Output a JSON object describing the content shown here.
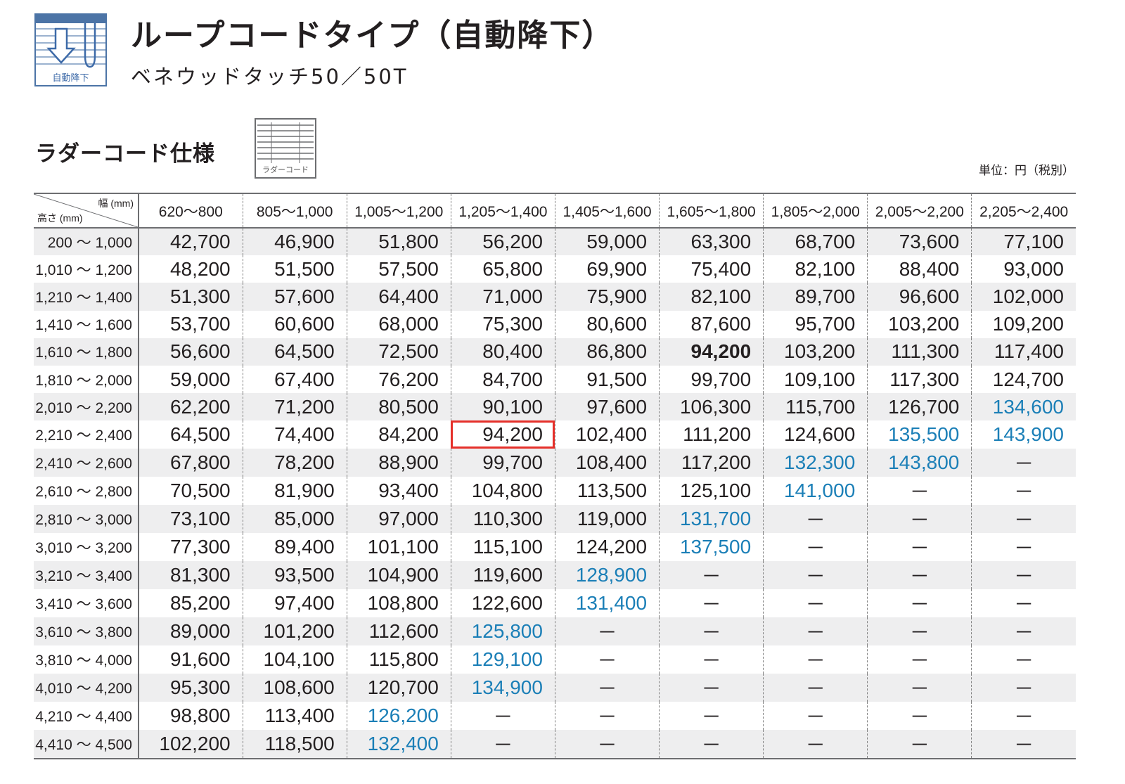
{
  "header": {
    "icon_caption": "自動降下",
    "title": "ループコードタイプ（自動降下）",
    "subtitle": "ベネウッドタッチ50／50T"
  },
  "section": {
    "title": "ラダーコード仕様",
    "icon_caption": "ラダーコード",
    "unit": "単位：円（税別）"
  },
  "table": {
    "corner_width_label": "幅 (mm)",
    "corner_height_label": "高さ (mm)",
    "columns": [
      "620～800",
      "805～1,000",
      "1,005～1,200",
      "1,205～1,400",
      "1,405～1,600",
      "1,605～1,800",
      "1,805～2,000",
      "2,005～2,200",
      "2,205～2,400"
    ],
    "rows": [
      {
        "label": "200 ～ 1,000",
        "values": [
          "42,700",
          "46,900",
          "51,800",
          "56,200",
          "59,000",
          "63,300",
          "68,700",
          "73,600",
          "77,100"
        ]
      },
      {
        "label": "1,010 ～ 1,200",
        "values": [
          "48,200",
          "51,500",
          "57,500",
          "65,800",
          "69,900",
          "75,400",
          "82,100",
          "88,400",
          "93,000"
        ]
      },
      {
        "label": "1,210 ～ 1,400",
        "values": [
          "51,300",
          "57,600",
          "64,400",
          "71,000",
          "75,900",
          "82,100",
          "89,700",
          "96,600",
          "102,000"
        ]
      },
      {
        "label": "1,410 ～ 1,600",
        "values": [
          "53,700",
          "60,600",
          "68,000",
          "75,300",
          "80,600",
          "87,600",
          "95,700",
          "103,200",
          "109,200"
        ]
      },
      {
        "label": "1,610 ～ 1,800",
        "values": [
          "56,600",
          "64,500",
          "72,500",
          "80,400",
          "86,800",
          "94,200",
          "103,200",
          "111,300",
          "117,400"
        ]
      },
      {
        "label": "1,810 ～ 2,000",
        "values": [
          "59,000",
          "67,400",
          "76,200",
          "84,700",
          "91,500",
          "99,700",
          "109,100",
          "117,300",
          "124,700"
        ]
      },
      {
        "label": "2,010 ～ 2,200",
        "values": [
          "62,200",
          "71,200",
          "80,500",
          "90,100",
          "97,600",
          "106,300",
          "115,700",
          "126,700",
          "134,600"
        ]
      },
      {
        "label": "2,210 ～ 2,400",
        "values": [
          "64,500",
          "74,400",
          "84,200",
          "94,200",
          "102,400",
          "111,200",
          "124,600",
          "135,500",
          "143,900"
        ]
      },
      {
        "label": "2,410 ～ 2,600",
        "values": [
          "67,800",
          "78,200",
          "88,900",
          "99,700",
          "108,400",
          "117,200",
          "132,300",
          "143,800",
          "－"
        ]
      },
      {
        "label": "2,610 ～ 2,800",
        "values": [
          "70,500",
          "81,900",
          "93,400",
          "104,800",
          "113,500",
          "125,100",
          "141,000",
          "－",
          "－"
        ]
      },
      {
        "label": "2,810 ～ 3,000",
        "values": [
          "73,100",
          "85,000",
          "97,000",
          "110,300",
          "119,000",
          "131,700",
          "－",
          "－",
          "－"
        ]
      },
      {
        "label": "3,010 ～ 3,200",
        "values": [
          "77,300",
          "89,400",
          "101,100",
          "115,100",
          "124,200",
          "137,500",
          "－",
          "－",
          "－"
        ]
      },
      {
        "label": "3,210 ～ 3,400",
        "values": [
          "81,300",
          "93,500",
          "104,900",
          "119,600",
          "128,900",
          "－",
          "－",
          "－",
          "－"
        ]
      },
      {
        "label": "3,410 ～ 3,600",
        "values": [
          "85,200",
          "97,400",
          "108,800",
          "122,600",
          "131,400",
          "－",
          "－",
          "－",
          "－"
        ]
      },
      {
        "label": "3,610 ～ 3,800",
        "values": [
          "89,000",
          "101,200",
          "112,600",
          "125,800",
          "－",
          "－",
          "－",
          "－",
          "－"
        ]
      },
      {
        "label": "3,810 ～ 4,000",
        "values": [
          "91,600",
          "104,100",
          "115,800",
          "129,100",
          "－",
          "－",
          "－",
          "－",
          "－"
        ]
      },
      {
        "label": "4,010 ～ 4,200",
        "values": [
          "95,300",
          "108,600",
          "120,700",
          "134,900",
          "－",
          "－",
          "－",
          "－",
          "－"
        ]
      },
      {
        "label": "4,210 ～ 4,400",
        "values": [
          "98,800",
          "113,400",
          "126,200",
          "－",
          "－",
          "－",
          "－",
          "－",
          "－"
        ]
      },
      {
        "label": "4,410 ～ 4,500",
        "values": [
          "102,200",
          "118,500",
          "132,400",
          "－",
          "－",
          "－",
          "－",
          "－",
          "－"
        ]
      }
    ],
    "blue_cells": [
      [
        6,
        8
      ],
      [
        7,
        7
      ],
      [
        7,
        8
      ],
      [
        8,
        6
      ],
      [
        8,
        7
      ],
      [
        9,
        6
      ],
      [
        10,
        5
      ],
      [
        11,
        5
      ],
      [
        12,
        4
      ],
      [
        13,
        4
      ],
      [
        14,
        3
      ],
      [
        15,
        3
      ],
      [
        16,
        3
      ],
      [
        17,
        2
      ],
      [
        18,
        2
      ]
    ],
    "bold_cells": [
      [
        4,
        5
      ]
    ],
    "boxed_cells": [
      [
        7,
        3
      ]
    ],
    "colors": {
      "blue_text": "#1b7fb7",
      "highlight_box": "#e5302a",
      "stripe": "#eeeeef",
      "icon_blue": "#4c74a6"
    }
  }
}
